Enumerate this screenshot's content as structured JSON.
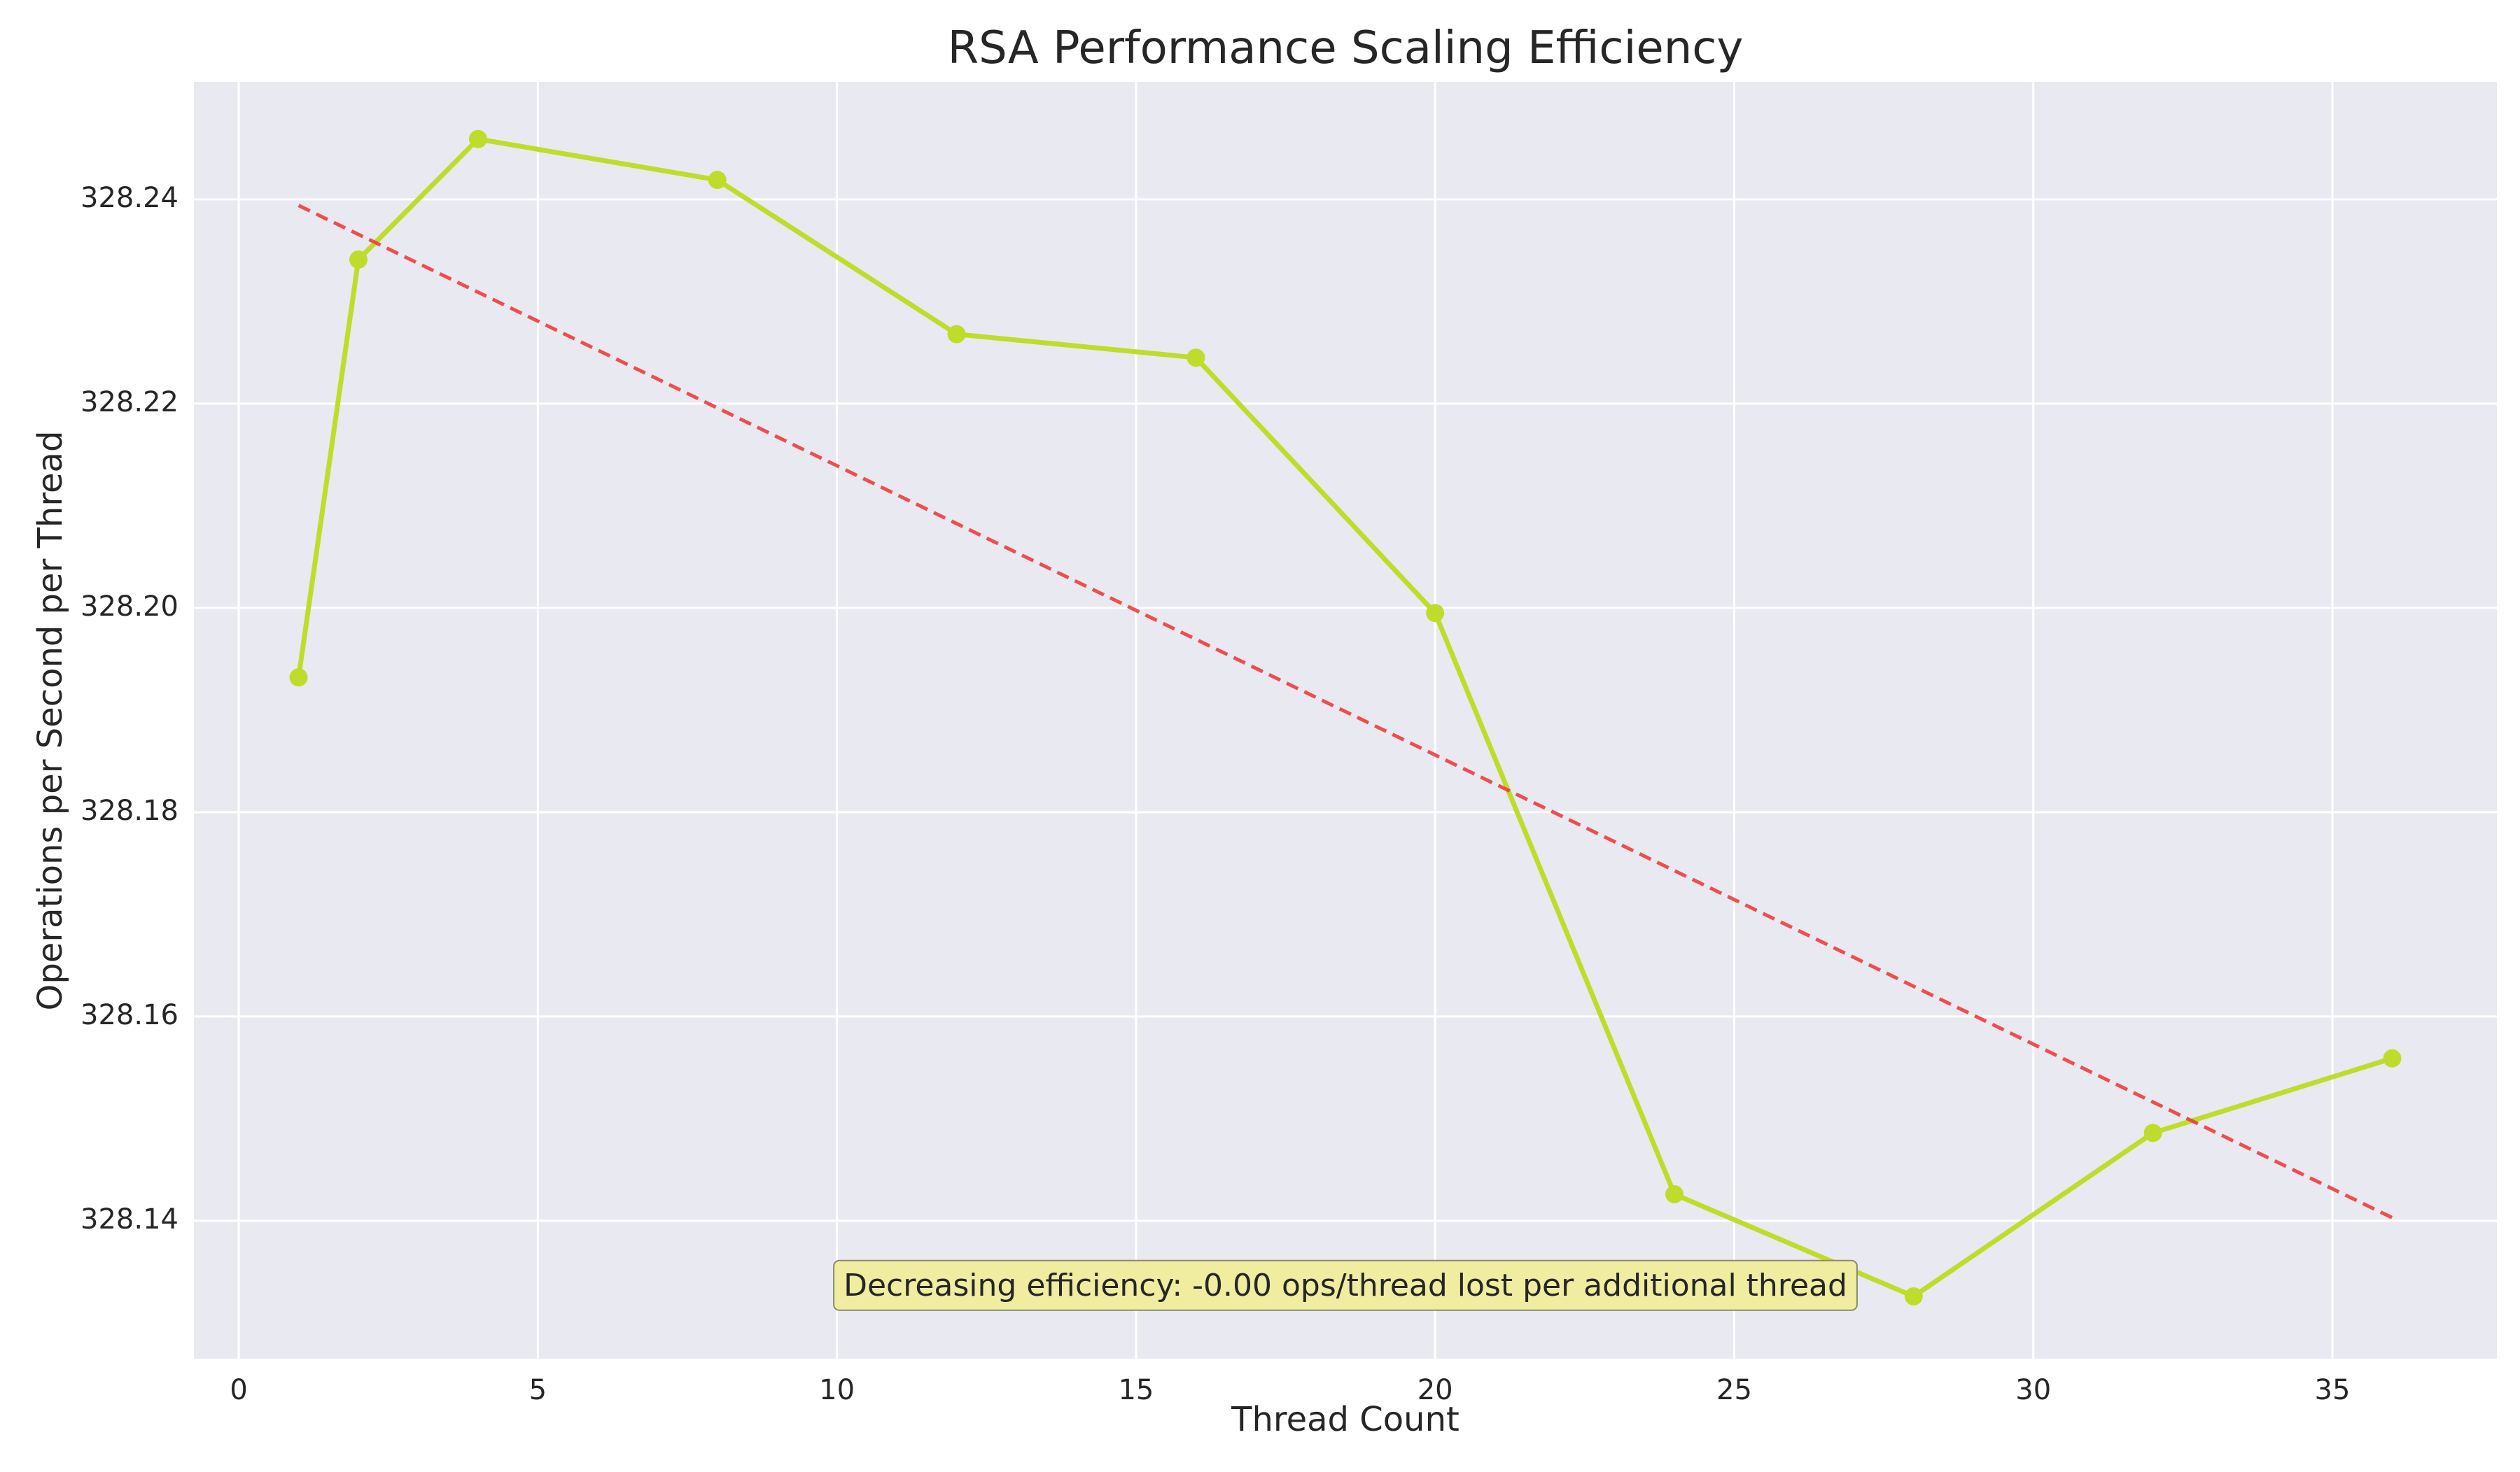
{
  "chart_data": {
    "type": "line",
    "title": "RSA Performance Scaling Efficiency",
    "xlabel": "Thread Count",
    "ylabel": "Operations per Second per Thread",
    "xlim": [
      -0.75,
      37.75
    ],
    "ylim": [
      328.1265,
      328.2515
    ],
    "xticks": [
      0,
      5,
      10,
      15,
      20,
      25,
      30,
      35
    ],
    "yticks": [
      328.14,
      328.16,
      328.18,
      328.2,
      328.22,
      328.24
    ],
    "ytick_decimals": 2,
    "grid": true,
    "series": [
      {
        "type": "line",
        "color": "#c0dc2b",
        "marker": "circle",
        "x": [
          1,
          2,
          4,
          8,
          12,
          16,
          20,
          24,
          28,
          32,
          36
        ],
        "y": [
          328.1932,
          328.2341,
          328.2459,
          328.2419,
          328.2268,
          328.2245,
          328.1995,
          328.1426,
          328.1326,
          328.1486,
          328.1559
        ]
      },
      {
        "type": "trend",
        "color": "#f03c3c",
        "style": "dashed",
        "x": [
          1,
          36
        ],
        "y": [
          328.2394,
          328.1403
        ]
      }
    ],
    "annotation": {
      "text": "Decreasing efficiency: -0.00 ops/thread lost per additional thread",
      "x": 18.5,
      "y": 328.1335,
      "box_color": "#f0eda1"
    }
  }
}
